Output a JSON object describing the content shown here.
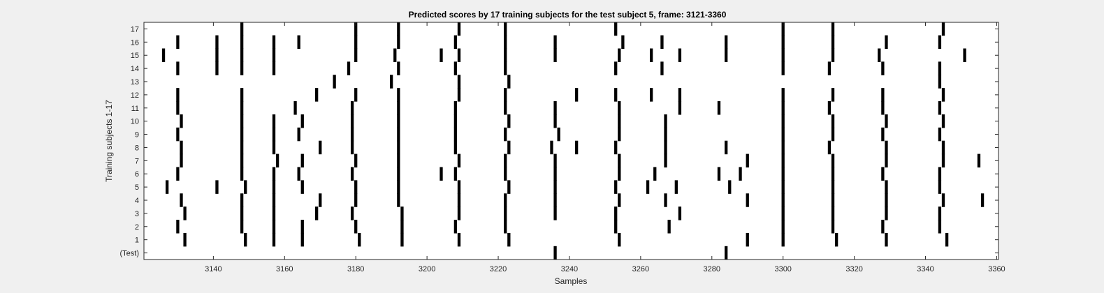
{
  "chart_data": {
    "type": "heatmap",
    "title": "Predicted scores by 17 training subjects for the test subject 5, frame: 3121-3360",
    "xlabel": "Samples",
    "ylabel": "Training subjects 1-17",
    "xlim": [
      3121,
      3360
    ],
    "x_ticks": [
      3140,
      3160,
      3180,
      3200,
      3220,
      3240,
      3260,
      3280,
      3300,
      3320,
      3340,
      3360
    ],
    "y_tick_labels": [
      "(Test)",
      "1",
      "2",
      "3",
      "4",
      "5",
      "6",
      "7",
      "8",
      "9",
      "10",
      "11",
      "12",
      "13",
      "14",
      "15",
      "16",
      "17"
    ],
    "colors": {
      "mark": "#000000",
      "background": "#ffffff",
      "axis": "#262626",
      "figure": "#f0f0f0"
    },
    "rows": [
      {
        "label": "(Test)",
        "samples": [
          3236,
          3284
        ]
      },
      {
        "label": "1",
        "samples": [
          3132,
          3149,
          3157,
          3165,
          3181,
          3193,
          3209,
          3223,
          3254,
          3290,
          3300,
          3315,
          3329,
          3346
        ]
      },
      {
        "label": "2",
        "samples": [
          3130,
          3148,
          3157,
          3165,
          3180,
          3193,
          3208,
          3222,
          3253,
          3268,
          3300,
          3314,
          3328,
          3344
        ]
      },
      {
        "label": "3",
        "samples": [
          3132,
          3148,
          3157,
          3169,
          3179,
          3193,
          3209,
          3222,
          3236,
          3253,
          3271,
          3300,
          3314,
          3329,
          3344
        ]
      },
      {
        "label": "4",
        "samples": [
          3131,
          3148,
          3157,
          3170,
          3180,
          3192,
          3209,
          3222,
          3236,
          3254,
          3267,
          3290,
          3300,
          3314,
          3329,
          3345,
          3356
        ]
      },
      {
        "label": "5",
        "samples": [
          3127,
          3141,
          3149,
          3157,
          3165,
          3180,
          3192,
          3209,
          3223,
          3236,
          3253,
          3262,
          3270,
          3285,
          3300,
          3314,
          3329,
          3344
        ]
      },
      {
        "label": "6",
        "samples": [
          3130,
          3148,
          3157,
          3164,
          3179,
          3192,
          3204,
          3208,
          3222,
          3236,
          3254,
          3264,
          3282,
          3288,
          3300,
          3314,
          3328,
          3344
        ]
      },
      {
        "label": "7",
        "samples": [
          3131,
          3148,
          3158,
          3165,
          3180,
          3192,
          3209,
          3222,
          3236,
          3254,
          3267,
          3290,
          3300,
          3314,
          3329,
          3345,
          3355
        ]
      },
      {
        "label": "8",
        "samples": [
          3131,
          3148,
          3157,
          3170,
          3179,
          3192,
          3208,
          3223,
          3235,
          3242,
          3253,
          3267,
          3284,
          3300,
          3313,
          3329,
          3345
        ]
      },
      {
        "label": "9",
        "samples": [
          3130,
          3148,
          3157,
          3164,
          3179,
          3192,
          3208,
          3222,
          3237,
          3254,
          3267,
          3300,
          3314,
          3328,
          3344
        ]
      },
      {
        "label": "10",
        "samples": [
          3131,
          3148,
          3157,
          3165,
          3179,
          3192,
          3208,
          3223,
          3236,
          3254,
          3267,
          3300,
          3314,
          3329,
          3345
        ]
      },
      {
        "label": "11",
        "samples": [
          3130,
          3148,
          3163,
          3179,
          3192,
          3208,
          3222,
          3236,
          3254,
          3271,
          3282,
          3300,
          3313,
          3328,
          3344
        ]
      },
      {
        "label": "12",
        "samples": [
          3130,
          3148,
          3169,
          3180,
          3192,
          3209,
          3222,
          3242,
          3253,
          3263,
          3271,
          3300,
          3314,
          3328,
          3345
        ]
      },
      {
        "label": "13",
        "samples": [
          3174,
          3190,
          3209,
          3223,
          3344
        ]
      },
      {
        "label": "14",
        "samples": [
          3130,
          3141,
          3148,
          3157,
          3178,
          3192,
          3208,
          3222,
          3253,
          3266,
          3300,
          3313,
          3328,
          3344
        ]
      },
      {
        "label": "15",
        "samples": [
          3126,
          3141,
          3148,
          3157,
          3180,
          3191,
          3204,
          3209,
          3222,
          3236,
          3254,
          3263,
          3271,
          3284,
          3300,
          3314,
          3327,
          3351
        ]
      },
      {
        "label": "16",
        "samples": [
          3130,
          3141,
          3148,
          3157,
          3164,
          3180,
          3192,
          3208,
          3222,
          3236,
          3255,
          3266,
          3284,
          3300,
          3314,
          3329,
          3344
        ]
      },
      {
        "label": "17",
        "samples": [
          3148,
          3180,
          3192,
          3209,
          3222,
          3253,
          3300,
          3314,
          3345
        ]
      }
    ]
  }
}
